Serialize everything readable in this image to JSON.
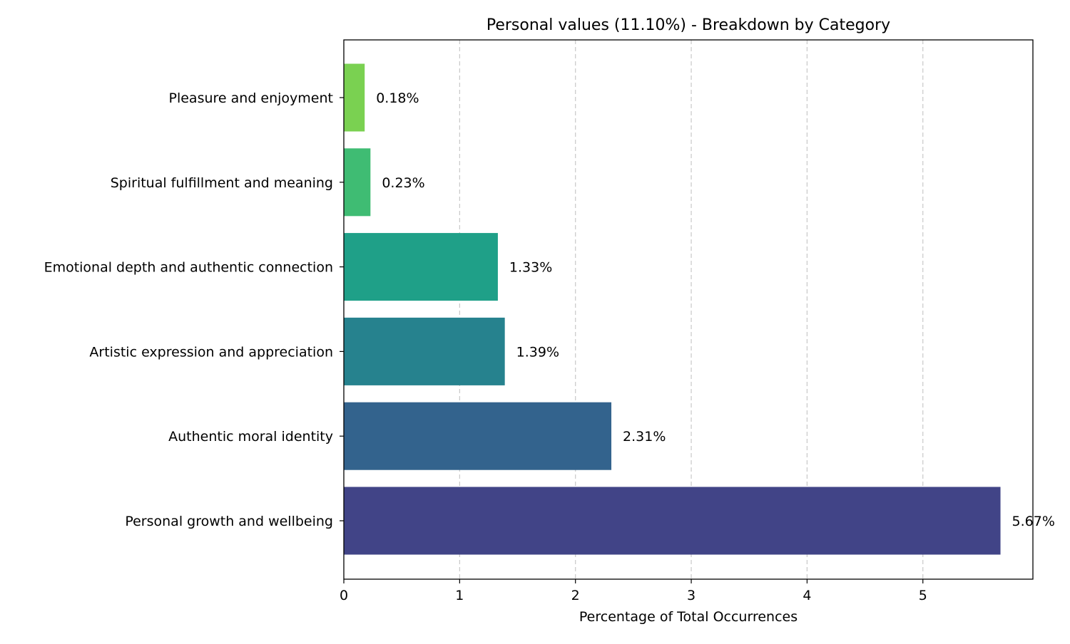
{
  "chart_data": {
    "type": "bar",
    "orientation": "horizontal",
    "title": "Personal values (11.10%) - Breakdown by Category",
    "xlabel": "Percentage of Total Occurrences",
    "ylabel": "",
    "xlim": [
      0,
      5.95
    ],
    "x_ticks": [
      0,
      1,
      2,
      3,
      4,
      5
    ],
    "grid": "x-dashed",
    "categories": [
      "Personal growth and wellbeing",
      "Authentic moral identity",
      "Artistic expression and appreciation",
      "Emotional depth and authentic connection",
      "Spiritual fulfillment and meaning",
      "Pleasure and enjoyment"
    ],
    "values": [
      5.67,
      2.31,
      1.39,
      1.33,
      0.23,
      0.18
    ],
    "value_labels": [
      "5.67%",
      "2.31%",
      "1.39%",
      "1.33%",
      "0.23%",
      "0.18%"
    ],
    "colors": [
      "#414487",
      "#33638d",
      "#26828e",
      "#1fa088",
      "#3fbc73",
      "#7ad151"
    ]
  }
}
